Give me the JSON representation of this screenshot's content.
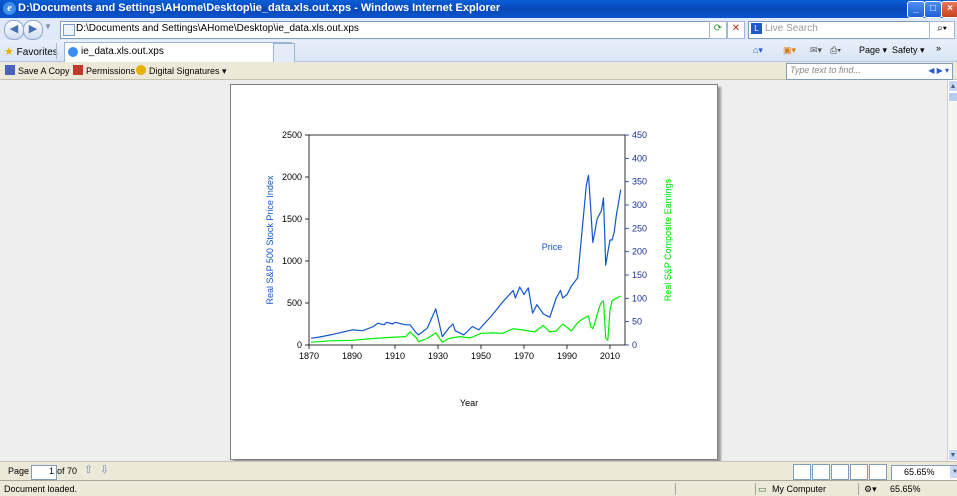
{
  "window": {
    "title": "D:\\Documents and Settings\\AHome\\Desktop\\ie_data.xls.out.xps - Windows Internet Explorer"
  },
  "address_bar": {
    "url": "D:\\Documents and Settings\\AHome\\Desktop\\ie_data.xls.out.xps",
    "search_placeholder": "Live Search"
  },
  "favorites_bar": {
    "favorites_label": "Favorites",
    "tab_title": "ie_data.xls.out.xps"
  },
  "command_bar": {
    "page_label": "Page",
    "safety_label": "Safety"
  },
  "xps_toolbar": {
    "save_copy": "Save A Copy",
    "permissions": "Permissions",
    "digital_signatures": "Digital Signatures",
    "find_placeholder": "Type text to find..."
  },
  "page_nav": {
    "page_label": "Page",
    "current_page": "1",
    "of_total": "of 70",
    "zoom": "65.65%"
  },
  "status": {
    "text": "Document loaded.",
    "zone": "My Computer"
  },
  "colors": {
    "price": "#1155cc",
    "earnings": "#00ee00",
    "titlebar": "#0848b8"
  },
  "chart_data": {
    "type": "line",
    "xlabel": "Year",
    "xlim": [
      1870,
      2017
    ],
    "x_ticks": [
      "1870",
      "1890",
      "1910",
      "1930",
      "1950",
      "1970",
      "1990",
      "2010"
    ],
    "y_left": {
      "label": "Real S&P 500 Stock Price Index",
      "ylim": [
        0,
        2500
      ],
      "ticks": [
        "0",
        "500",
        "1000",
        "1500",
        "2000",
        "2500"
      ]
    },
    "y_right": {
      "label": "Real S&P Composite Earnings",
      "ylim": [
        0,
        450
      ],
      "ticks": [
        "0",
        "50",
        "100",
        "150",
        "200",
        "250",
        "300",
        "350",
        "400",
        "450"
      ]
    },
    "annotations": [
      "Price"
    ],
    "series": [
      {
        "axis": "left",
        "color": "#1155cc",
        "x": [
          1871,
          1875,
          1880,
          1885,
          1890,
          1895,
          1900,
          1902,
          1905,
          1906,
          1909,
          1910,
          1915,
          1917,
          1920,
          1921,
          1925,
          1929,
          1932,
          1935,
          1937,
          1938,
          1942,
          1946,
          1949,
          1955,
          1960,
          1965,
          1966,
          1968,
          1970,
          1972,
          1974,
          1976,
          1979,
          1982,
          1985,
          1987,
          1988,
          1990,
          1992,
          1995,
          1997,
          1999,
          2000,
          2001,
          2002,
          2003,
          2004,
          2006,
          2007,
          2008,
          2009,
          2010,
          2011,
          2012,
          2013,
          2014,
          2015
        ],
        "y": [
          80,
          95,
          120,
          150,
          180,
          170,
          220,
          260,
          240,
          270,
          250,
          270,
          240,
          240,
          140,
          120,
          200,
          430,
          100,
          200,
          250,
          170,
          120,
          220,
          180,
          350,
          510,
          650,
          560,
          690,
          600,
          680,
          380,
          480,
          370,
          330,
          560,
          650,
          560,
          600,
          700,
          800,
          1350,
          1900,
          2020,
          1650,
          1220,
          1350,
          1500,
          1600,
          1750,
          950,
          1100,
          1250,
          1250,
          1350,
          1550,
          1700,
          1850
        ]
      },
      {
        "axis": "right",
        "color": "#00ee00",
        "x": [
          1871,
          1880,
          1890,
          1900,
          1910,
          1915,
          1917,
          1920,
          1921,
          1925,
          1929,
          1932,
          1935,
          1940,
          1945,
          1950,
          1955,
          1960,
          1965,
          1970,
          1975,
          1979,
          1982,
          1985,
          1988,
          1990,
          1992,
          1995,
          1997,
          2000,
          2001,
          2002,
          2003,
          2005,
          2006,
          2007,
          2008,
          2009,
          2010,
          2011,
          2013,
          2015
        ],
        "y": [
          6,
          9,
          10,
          14,
          17,
          18,
          28,
          15,
          7,
          14,
          26,
          6,
          14,
          18,
          15,
          25,
          26,
          25,
          35,
          32,
          28,
          42,
          28,
          30,
          45,
          38,
          30,
          48,
          55,
          62,
          40,
          35,
          48,
          80,
          92,
          95,
          15,
          10,
          75,
          95,
          100,
          105
        ]
      }
    ]
  }
}
